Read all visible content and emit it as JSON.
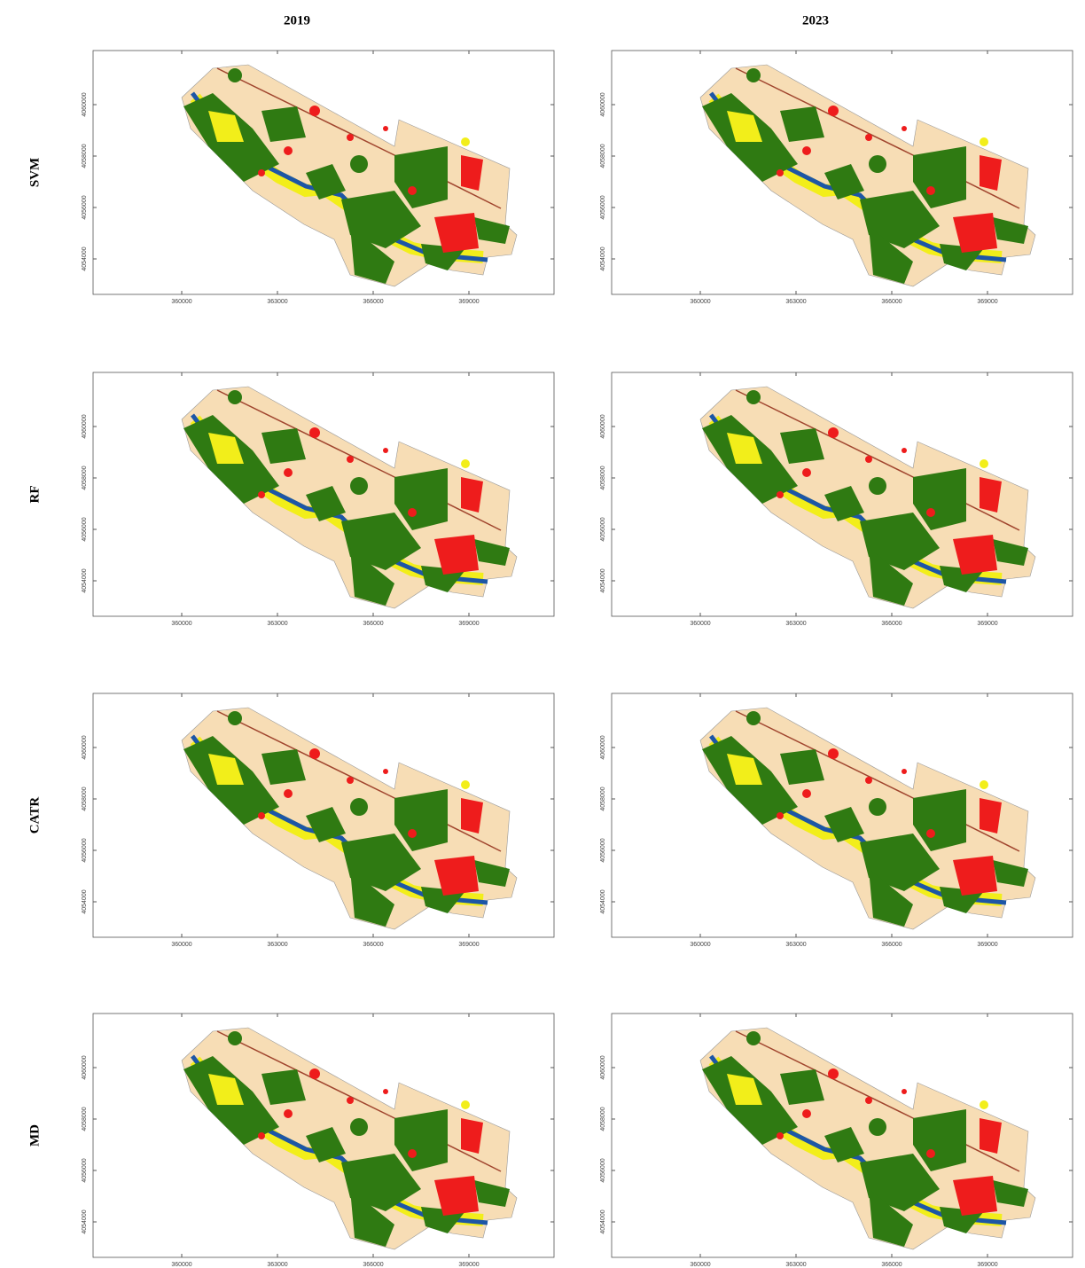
{
  "columns": [
    "2019",
    "2023"
  ],
  "rows": [
    "SVM",
    "RF",
    "CATR",
    "MD"
  ],
  "x_ticks": [
    "360000",
    "363000",
    "366000",
    "369000"
  ],
  "y_ticks": [
    "4054000",
    "4056000",
    "4058000",
    "4060000"
  ]
}
